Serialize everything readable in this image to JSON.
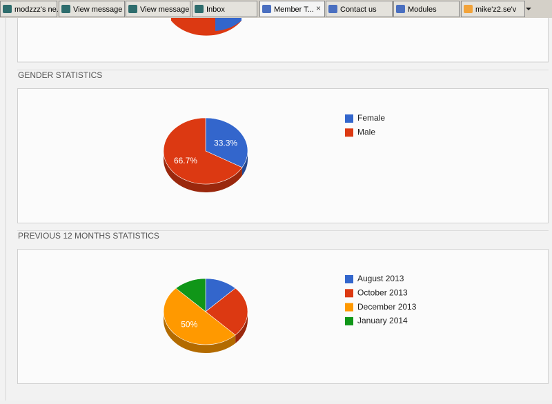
{
  "tabs": [
    "modzzz's ne...",
    "View message",
    "View message",
    "Inbox",
    "Member T...",
    "Contact us",
    "Modules",
    "mike'z2.se'v"
  ],
  "chart_data": [
    {
      "type": "pie",
      "title": "GENDER STATISTICS",
      "categories": [
        "Female",
        "Male"
      ],
      "values": [
        33.3,
        66.7
      ],
      "value_labels": [
        "33.3%",
        "66.7%"
      ],
      "colors": [
        "#3366cc",
        "#dc3912"
      ]
    },
    {
      "type": "pie",
      "title": "PREVIOUS 12 MONTHS STATISTICS",
      "categories": [
        "August 2013",
        "October 2013",
        "December 2013",
        "January 2014"
      ],
      "values": [
        12.5,
        25,
        50,
        12.5
      ],
      "value_labels": [
        null,
        null,
        "50%",
        null
      ],
      "colors": [
        "#3366cc",
        "#dc3912",
        "#ff9900",
        "#109618"
      ]
    }
  ]
}
